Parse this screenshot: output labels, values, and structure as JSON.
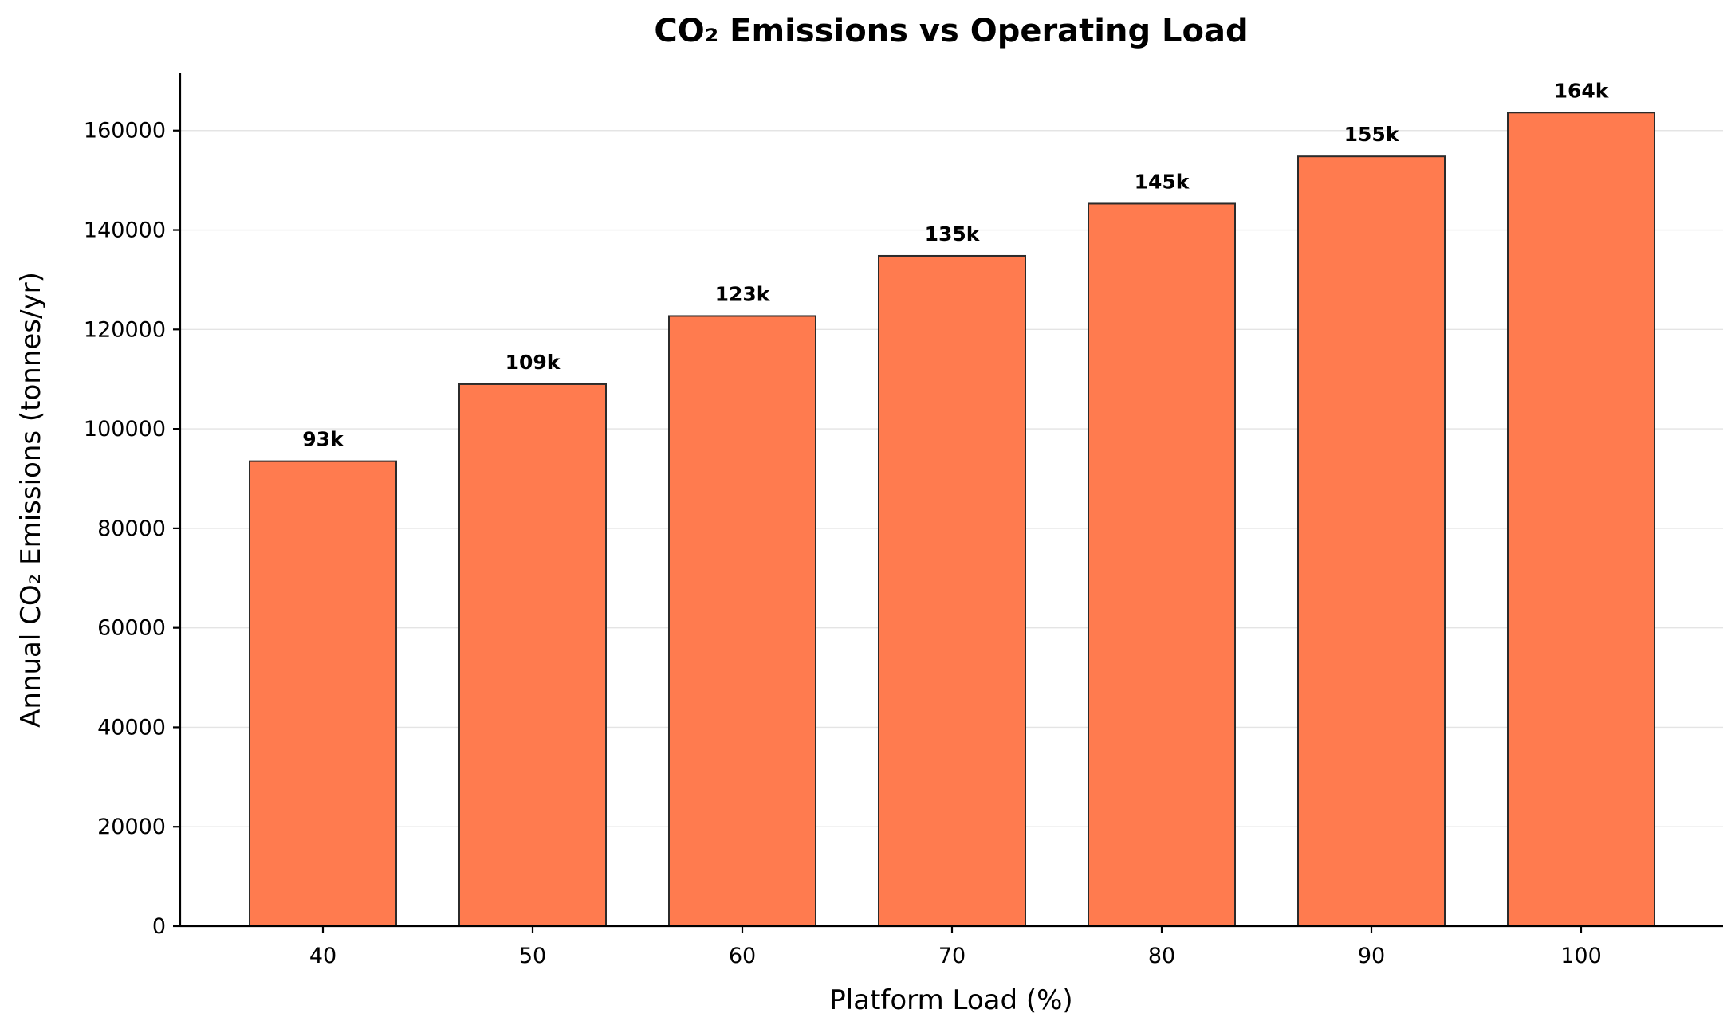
{
  "chart_data": {
    "type": "bar",
    "title": "CO₂ Emissions vs Operating Load",
    "xlabel": "Platform Load (%)",
    "ylabel": "Annual CO₂ Emissions (tonnes/yr)",
    "categories": [
      "40",
      "50",
      "60",
      "70",
      "80",
      "90",
      "100"
    ],
    "values": [
      93500,
      109000,
      122700,
      134800,
      145300,
      154800,
      163600
    ],
    "data_labels": [
      "93k",
      "109k",
      "123k",
      "135k",
      "145k",
      "155k",
      "164k"
    ],
    "ylim": [
      0,
      171500
    ],
    "yticks": [
      0,
      20000,
      40000,
      60000,
      80000,
      100000,
      120000,
      140000,
      160000
    ],
    "ytick_labels": [
      "0",
      "20000",
      "40000",
      "60000",
      "80000",
      "100000",
      "120000",
      "140000",
      "160000"
    ],
    "grid": "horizontal",
    "legend": "none",
    "colors": {
      "bar_fill": "#ff7b4f",
      "bar_edge": "#2b2b2b"
    }
  }
}
